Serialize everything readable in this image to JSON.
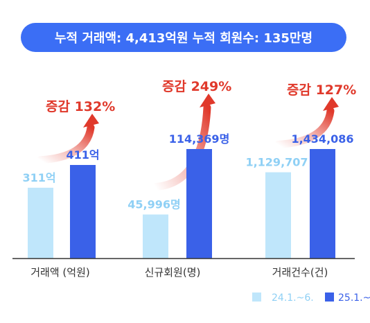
{
  "colors": {
    "banner": "#3b6ef5",
    "banner_text": "#ffffff",
    "before": "#bfe6fb",
    "after": "#3a61e8",
    "before_label": "#8fd0f5",
    "after_label": "#3a61e8",
    "increase": "#e0392b",
    "axis": "#333333",
    "category_text": "#333333"
  },
  "banner": {
    "text": "누적 거래액: 4,413억원   누적 회원수: 135만명"
  },
  "chart_data": {
    "type": "bar",
    "title": "",
    "xlabel": "",
    "ylabel": "",
    "grid": false,
    "legend_position": "bottom-right",
    "categories": [
      "거래액 (억원)",
      "신규회원(명)",
      "거래건수(건)"
    ],
    "series": [
      {
        "name": "24.1.~6.",
        "values": [
          311,
          45996,
          1129707
        ],
        "labels": [
          "311억",
          "45,996명",
          "1,129,707"
        ]
      },
      {
        "name": "25.1.~",
        "values": [
          411,
          114369,
          1434086
        ],
        "labels": [
          "411억",
          "114,369명",
          "1,434,086"
        ]
      }
    ],
    "increase_labels": [
      "증감 132%",
      "증감 249%",
      "증감 127%"
    ]
  }
}
